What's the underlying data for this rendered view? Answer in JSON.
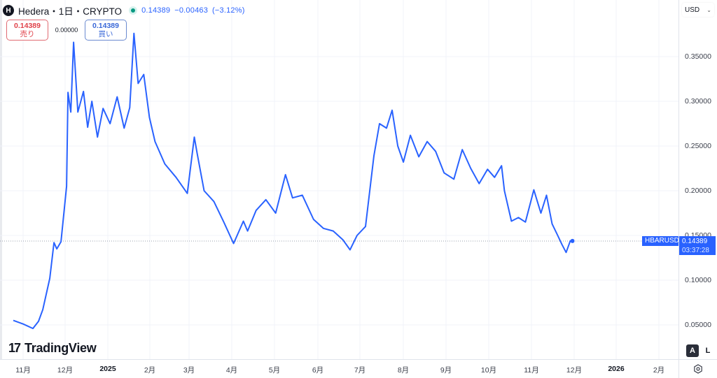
{
  "header": {
    "symbol_icon": "H",
    "title": "Hedera・1日・CRYPTO",
    "status": "market-open",
    "last_price": "0.14389",
    "change": "−0.00463",
    "change_pct": "(−3.12%)"
  },
  "trade": {
    "sell_price": "0.14389",
    "sell_label": "売り",
    "spread": "0.00000",
    "buy_price": "0.14389",
    "buy_label": "買い"
  },
  "price_axis": {
    "currency": "USD",
    "currency_icon": "chevron-down-icon",
    "labels": [
      "0.35000",
      "0.30000",
      "0.25000",
      "0.20000",
      "0.15000",
      "0.10000",
      "0.05000"
    ]
  },
  "time_axis": {
    "labels": [
      "11月",
      "12月",
      "2025",
      "2月",
      "3月",
      "4月",
      "5月",
      "6月",
      "7月",
      "8月",
      "9月",
      "10月",
      "11月",
      "12月",
      "2026",
      "2月"
    ]
  },
  "last_price_tag": {
    "symbol": "HBARUSD",
    "price": "0.14389",
    "countdown": "03:37:28"
  },
  "branding": {
    "logo_mark": "17",
    "logo_text": "TradingView"
  },
  "scale_buttons": {
    "auto": "A",
    "log": "L",
    "settings_icon": "gear-icon"
  },
  "colors": {
    "line": "#2962ff",
    "accent": "#2962ff",
    "sell": "#e0424a",
    "buy": "#3a68d8",
    "live": "#089981"
  },
  "chart_data": {
    "type": "line",
    "title": "Hedera・1日・CRYPTO (HBARUSD)",
    "xlabel": "",
    "ylabel": "USD",
    "ylim": [
      0.035,
      0.39
    ],
    "y_ticks": [
      0.05,
      0.1,
      0.15,
      0.2,
      0.25,
      0.3,
      0.35
    ],
    "x_ticks": [
      "11月",
      "12月",
      "2025",
      "2月",
      "3月",
      "4月",
      "5月",
      "6月",
      "7月",
      "8月",
      "9月",
      "10月",
      "11月",
      "12月",
      "2026",
      "2月"
    ],
    "grid": true,
    "last_value": 0.14389,
    "series": [
      {
        "name": "HBARUSD",
        "x": [
          "2024-10-25",
          "2024-11-01",
          "2024-11-08",
          "2024-11-12",
          "2024-11-15",
          "2024-11-20",
          "2024-11-23",
          "2024-11-25",
          "2024-11-28",
          "2024-12-02",
          "2024-12-03",
          "2024-12-05",
          "2024-12-07",
          "2024-12-10",
          "2024-12-14",
          "2024-12-17",
          "2024-12-20",
          "2024-12-24",
          "2024-12-28",
          "2025-01-02",
          "2025-01-07",
          "2025-01-12",
          "2025-01-16",
          "2025-01-19",
          "2025-01-22",
          "2025-01-26",
          "2025-01-30",
          "2025-02-03",
          "2025-02-10",
          "2025-02-18",
          "2025-02-26",
          "2025-03-03",
          "2025-03-05",
          "2025-03-10",
          "2025-03-17",
          "2025-03-24",
          "2025-03-31",
          "2025-04-07",
          "2025-04-10",
          "2025-04-16",
          "2025-04-23",
          "2025-04-30",
          "2025-05-07",
          "2025-05-12",
          "2025-05-19",
          "2025-05-27",
          "2025-06-03",
          "2025-06-10",
          "2025-06-17",
          "2025-06-22",
          "2025-06-27",
          "2025-07-03",
          "2025-07-09",
          "2025-07-13",
          "2025-07-18",
          "2025-07-22",
          "2025-07-26",
          "2025-07-30",
          "2025-08-04",
          "2025-08-10",
          "2025-08-16",
          "2025-08-22",
          "2025-08-28",
          "2025-09-04",
          "2025-09-10",
          "2025-09-16",
          "2025-09-22",
          "2025-09-28",
          "2025-10-03",
          "2025-10-08",
          "2025-10-10",
          "2025-10-15",
          "2025-10-20",
          "2025-10-25",
          "2025-10-31",
          "2025-11-05",
          "2025-11-09",
          "2025-11-13",
          "2025-11-17",
          "2025-11-20",
          "2025-11-23",
          "2025-11-26"
        ],
        "values": [
          0.055,
          0.051,
          0.046,
          0.054,
          0.067,
          0.102,
          0.142,
          0.135,
          0.143,
          0.205,
          0.31,
          0.288,
          0.366,
          0.288,
          0.311,
          0.271,
          0.3,
          0.26,
          0.292,
          0.275,
          0.305,
          0.27,
          0.293,
          0.376,
          0.32,
          0.33,
          0.282,
          0.255,
          0.23,
          0.215,
          0.197,
          0.26,
          0.242,
          0.2,
          0.188,
          0.165,
          0.141,
          0.166,
          0.155,
          0.178,
          0.19,
          0.175,
          0.218,
          0.192,
          0.195,
          0.168,
          0.158,
          0.155,
          0.145,
          0.134,
          0.15,
          0.16,
          0.239,
          0.275,
          0.27,
          0.29,
          0.25,
          0.232,
          0.262,
          0.238,
          0.255,
          0.244,
          0.22,
          0.213,
          0.246,
          0.225,
          0.208,
          0.224,
          0.215,
          0.228,
          0.2,
          0.166,
          0.17,
          0.165,
          0.201,
          0.175,
          0.195,
          0.163,
          0.15,
          0.14,
          0.131,
          0.144
        ]
      }
    ]
  }
}
